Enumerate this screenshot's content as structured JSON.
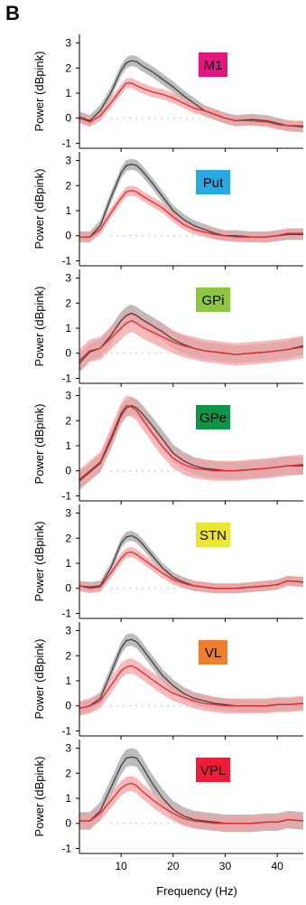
{
  "panel_letter": "B",
  "colors": {
    "gray_line": "#404040",
    "gray_band": "#a6a6a6",
    "red_line": "#e8262d",
    "red_band": "#f4a3a3"
  },
  "chart_data": [
    {
      "type": "line",
      "title": "M1",
      "label_color": "#e5157f",
      "ylabel": "Power (dBpink)",
      "xlabel": "",
      "xlim": [
        2,
        45
      ],
      "ylim": [
        -1.2,
        3.2
      ],
      "yticks": [
        -1,
        0,
        1,
        2,
        3
      ],
      "xticks": [
        10,
        20,
        30,
        40
      ],
      "show_xtick_labels": false,
      "series": [
        {
          "color": "gray",
          "x": [
            2,
            4,
            6,
            8,
            10,
            11,
            12,
            13,
            14,
            16,
            18,
            20,
            22,
            24,
            26,
            28,
            30,
            32,
            35,
            38,
            40,
            42,
            45
          ],
          "y": [
            0.05,
            -0.1,
            0.3,
            1.0,
            1.9,
            2.2,
            2.3,
            2.25,
            2.1,
            1.85,
            1.55,
            1.25,
            0.9,
            0.6,
            0.3,
            0.15,
            0.0,
            -0.1,
            -0.05,
            -0.1,
            -0.2,
            -0.3,
            -0.35
          ],
          "band": 0.22
        },
        {
          "color": "red",
          "x": [
            2,
            4,
            6,
            8,
            10,
            11,
            12,
            13,
            14,
            16,
            18,
            20,
            22,
            24,
            26,
            28,
            30,
            32,
            35,
            38,
            40,
            42,
            45
          ],
          "y": [
            0.0,
            -0.15,
            0.1,
            0.6,
            1.15,
            1.4,
            1.4,
            1.3,
            1.2,
            1.05,
            0.95,
            0.8,
            0.6,
            0.4,
            0.3,
            0.15,
            0.0,
            -0.1,
            -0.1,
            -0.15,
            -0.25,
            -0.3,
            -0.3
          ],
          "band": 0.2
        }
      ]
    },
    {
      "type": "line",
      "title": "Put",
      "label_color": "#27aae1",
      "ylabel": "Power (dBpink)",
      "xlabel": "",
      "xlim": [
        2,
        45
      ],
      "ylim": [
        -1.2,
        3.2
      ],
      "yticks": [
        -1,
        0,
        1,
        2,
        3
      ],
      "xticks": [
        10,
        20,
        30,
        40
      ],
      "show_xtick_labels": false,
      "series": [
        {
          "color": "gray",
          "x": [
            2,
            4,
            6,
            8,
            10,
            11,
            12,
            13,
            14,
            16,
            18,
            20,
            22,
            24,
            26,
            28,
            30,
            32,
            35,
            38,
            40,
            42,
            45
          ],
          "y": [
            -0.05,
            -0.05,
            0.4,
            1.5,
            2.5,
            2.8,
            2.85,
            2.8,
            2.6,
            2.1,
            1.55,
            1.0,
            0.65,
            0.4,
            0.25,
            0.1,
            0.0,
            0.0,
            -0.05,
            -0.05,
            0.0,
            0.05,
            0.05
          ],
          "band": 0.22
        },
        {
          "color": "red",
          "x": [
            2,
            4,
            6,
            8,
            10,
            11,
            12,
            13,
            14,
            16,
            18,
            20,
            22,
            24,
            26,
            28,
            30,
            32,
            35,
            38,
            40,
            42,
            45
          ],
          "y": [
            -0.05,
            -0.05,
            0.25,
            0.9,
            1.5,
            1.75,
            1.8,
            1.75,
            1.6,
            1.35,
            1.1,
            0.75,
            0.45,
            0.25,
            0.15,
            0.05,
            0.0,
            -0.05,
            -0.05,
            -0.05,
            0.0,
            0.1,
            0.1
          ],
          "band": 0.2
        }
      ]
    },
    {
      "type": "line",
      "title": "GPi",
      "label_color": "#8dc63f",
      "ylabel": "Power (dBpink)",
      "xlabel": "",
      "xlim": [
        2,
        45
      ],
      "ylim": [
        -1.2,
        3.2
      ],
      "yticks": [
        -1,
        0,
        1,
        2,
        3
      ],
      "xticks": [
        10,
        20,
        30,
        40
      ],
      "show_xtick_labels": false,
      "series": [
        {
          "color": "gray",
          "x": [
            2,
            4,
            6,
            8,
            10,
            11,
            12,
            13,
            14,
            16,
            18,
            20,
            22,
            24,
            26,
            28,
            30,
            32,
            35,
            38,
            40,
            42,
            45
          ],
          "y": [
            -0.4,
            0.05,
            0.2,
            0.7,
            1.3,
            1.5,
            1.6,
            1.5,
            1.35,
            1.1,
            0.85,
            0.55,
            0.35,
            0.2,
            0.1,
            0.05,
            0.0,
            -0.05,
            0.0,
            0.05,
            0.1,
            0.15,
            0.3
          ],
          "band": 0.35
        },
        {
          "color": "red",
          "x": [
            2,
            4,
            6,
            8,
            10,
            11,
            12,
            13,
            14,
            16,
            18,
            20,
            22,
            24,
            26,
            28,
            30,
            32,
            35,
            38,
            40,
            42,
            45
          ],
          "y": [
            -0.3,
            0.1,
            0.2,
            0.6,
            1.0,
            1.2,
            1.3,
            1.2,
            1.05,
            0.85,
            0.65,
            0.45,
            0.3,
            0.2,
            0.1,
            0.05,
            0.0,
            -0.05,
            0.0,
            0.05,
            0.1,
            0.15,
            0.25
          ],
          "band": 0.45
        }
      ]
    },
    {
      "type": "line",
      "title": "GPe",
      "label_color": "#0d9648",
      "ylabel": "Power (dBpink)",
      "xlabel": "",
      "xlim": [
        2,
        45
      ],
      "ylim": [
        -1.2,
        3.2
      ],
      "yticks": [
        -1,
        0,
        1,
        2,
        3
      ],
      "xticks": [
        10,
        20,
        30,
        40
      ],
      "show_xtick_labels": false,
      "series": [
        {
          "color": "gray",
          "x": [
            2,
            4,
            6,
            8,
            10,
            11,
            12,
            13,
            14,
            16,
            18,
            20,
            22,
            24,
            26,
            28,
            30,
            32,
            35,
            38,
            40,
            42,
            45
          ],
          "y": [
            -0.4,
            -0.05,
            0.3,
            1.2,
            2.2,
            2.5,
            2.6,
            2.5,
            2.3,
            1.8,
            1.25,
            0.7,
            0.4,
            0.2,
            0.1,
            0.05,
            0.0,
            0.0,
            0.05,
            0.1,
            0.15,
            0.2,
            0.2
          ],
          "band": 0.35
        },
        {
          "color": "red",
          "x": [
            2,
            4,
            6,
            8,
            10,
            11,
            12,
            13,
            14,
            16,
            18,
            20,
            22,
            24,
            26,
            28,
            30,
            32,
            35,
            38,
            40,
            42,
            45
          ],
          "y": [
            -0.35,
            0.0,
            0.35,
            1.3,
            2.3,
            2.6,
            2.55,
            2.4,
            2.1,
            1.5,
            0.95,
            0.5,
            0.25,
            0.1,
            0.05,
            0.0,
            0.0,
            0.0,
            0.05,
            0.1,
            0.15,
            0.2,
            0.25
          ],
          "band": 0.4
        }
      ]
    },
    {
      "type": "line",
      "title": "STN",
      "label_color": "#ede630",
      "ylabel": "Power (dBpink)",
      "xlabel": "",
      "xlim": [
        2,
        45
      ],
      "ylim": [
        -1.2,
        3.2
      ],
      "yticks": [
        -1,
        0,
        1,
        2,
        3
      ],
      "xticks": [
        10,
        20,
        30,
        40
      ],
      "show_xtick_labels": false,
      "series": [
        {
          "color": "gray",
          "x": [
            2,
            4,
            6,
            8,
            10,
            11,
            12,
            13,
            14,
            16,
            18,
            20,
            22,
            24,
            26,
            28,
            30,
            32,
            35,
            38,
            40,
            42,
            45
          ],
          "y": [
            0.1,
            0.05,
            0.1,
            0.8,
            1.8,
            2.05,
            2.1,
            2.0,
            1.8,
            1.3,
            0.8,
            0.45,
            0.25,
            0.1,
            0.05,
            0.0,
            0.0,
            0.0,
            0.05,
            0.1,
            0.15,
            0.3,
            0.25
          ],
          "band": 0.2
        },
        {
          "color": "red",
          "x": [
            2,
            4,
            6,
            8,
            10,
            11,
            12,
            13,
            14,
            16,
            18,
            20,
            22,
            24,
            26,
            28,
            30,
            32,
            35,
            38,
            40,
            42,
            45
          ],
          "y": [
            0.1,
            0.0,
            0.05,
            0.6,
            1.2,
            1.4,
            1.45,
            1.35,
            1.2,
            0.9,
            0.6,
            0.35,
            0.2,
            0.1,
            0.05,
            0.0,
            0.0,
            0.0,
            0.05,
            0.1,
            0.15,
            0.3,
            0.25
          ],
          "band": 0.2
        }
      ]
    },
    {
      "type": "line",
      "title": "VL",
      "label_color": "#f07f2d",
      "ylabel": "Power (dBpink)",
      "xlabel": "",
      "xlim": [
        2,
        45
      ],
      "ylim": [
        -1.2,
        3.2
      ],
      "yticks": [
        -1,
        0,
        1,
        2,
        3
      ],
      "xticks": [
        10,
        20,
        30,
        40
      ],
      "show_xtick_labels": false,
      "series": [
        {
          "color": "gray",
          "x": [
            2,
            4,
            6,
            8,
            10,
            11,
            12,
            13,
            14,
            16,
            18,
            20,
            22,
            24,
            26,
            28,
            30,
            32,
            35,
            38,
            40,
            42,
            45
          ],
          "y": [
            -0.1,
            0.0,
            0.3,
            1.3,
            2.3,
            2.6,
            2.65,
            2.55,
            2.3,
            1.75,
            1.2,
            0.8,
            0.5,
            0.3,
            0.2,
            0.1,
            0.05,
            0.0,
            0.0,
            0.0,
            0.05,
            0.05,
            0.1
          ],
          "band": 0.25
        },
        {
          "color": "red",
          "x": [
            2,
            4,
            6,
            8,
            10,
            11,
            12,
            13,
            14,
            16,
            18,
            20,
            22,
            24,
            26,
            28,
            30,
            32,
            35,
            38,
            40,
            42,
            45
          ],
          "y": [
            -0.1,
            0.0,
            0.2,
            0.8,
            1.4,
            1.55,
            1.6,
            1.5,
            1.35,
            1.05,
            0.75,
            0.5,
            0.35,
            0.2,
            0.1,
            0.05,
            0.0,
            0.0,
            0.0,
            0.0,
            0.05,
            0.05,
            0.1
          ],
          "band": 0.3
        }
      ]
    },
    {
      "type": "line",
      "title": "VPL",
      "label_color": "#ed1c3a",
      "ylabel": "Power (dBpink)",
      "xlabel": "Frequency (Hz)",
      "xlim": [
        2,
        45
      ],
      "ylim": [
        -1.2,
        3.2
      ],
      "yticks": [
        -1,
        0,
        1,
        2,
        3
      ],
      "xticks": [
        10,
        20,
        30,
        40
      ],
      "show_xtick_labels": true,
      "series": [
        {
          "color": "gray",
          "x": [
            2,
            4,
            6,
            8,
            10,
            11,
            12,
            13,
            14,
            16,
            18,
            20,
            22,
            24,
            26,
            28,
            30,
            32,
            35,
            38,
            40,
            42,
            45
          ],
          "y": [
            0.1,
            0.1,
            0.5,
            1.4,
            2.3,
            2.6,
            2.65,
            2.6,
            2.3,
            1.6,
            1.0,
            0.55,
            0.3,
            0.15,
            0.1,
            0.05,
            0.0,
            0.0,
            0.0,
            0.05,
            0.05,
            0.15,
            0.1
          ],
          "band": 0.35
        },
        {
          "color": "red",
          "x": [
            2,
            4,
            6,
            8,
            10,
            11,
            12,
            13,
            14,
            16,
            18,
            20,
            22,
            24,
            26,
            28,
            30,
            32,
            35,
            38,
            40,
            42,
            45
          ],
          "y": [
            0.1,
            0.1,
            0.4,
            0.9,
            1.4,
            1.55,
            1.6,
            1.5,
            1.3,
            0.95,
            0.65,
            0.4,
            0.2,
            0.1,
            0.05,
            0.0,
            0.0,
            0.0,
            0.0,
            0.05,
            0.05,
            0.15,
            0.1
          ],
          "band": 0.3
        }
      ]
    }
  ]
}
